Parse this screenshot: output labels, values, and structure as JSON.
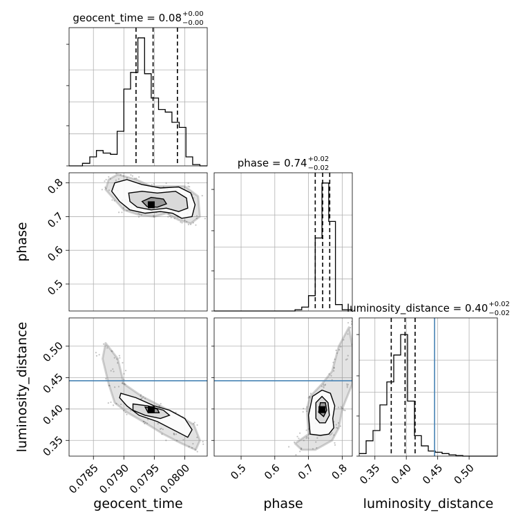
{
  "chart_data": {
    "type": "corner",
    "parameters": [
      "geocent_time",
      "phase",
      "luminosity_distance"
    ],
    "titles": [
      {
        "param": "geocent_time",
        "text": "geocent_time = 0.08",
        "sup": "+0.00",
        "sub": "−0.00"
      },
      {
        "param": "phase",
        "text": "phase = 0.74",
        "sup": "+0.02",
        "sub": "−0.02"
      },
      {
        "param": "luminosity_distance",
        "text": "luminosity_distance = 0.40",
        "sup": "+0.02",
        "sub": "−0.02"
      }
    ],
    "axis_labels": {
      "x": [
        "geocent_time",
        "phase",
        "luminosity_distance"
      ],
      "y": [
        "phase",
        "luminosity_distance"
      ]
    },
    "ranges": {
      "geocent_time": [
        0.0781,
        0.08037
      ],
      "phase": [
        0.42,
        0.83
      ],
      "luminosity_distance": [
        0.325,
        0.545
      ]
    },
    "ticks": {
      "geocent_time": [
        0.0785,
        0.079,
        0.0795,
        0.08
      ],
      "phase": [
        0.5,
        0.6,
        0.7,
        0.8
      ],
      "luminosity_distance": [
        0.35,
        0.4,
        0.45,
        0.5
      ]
    },
    "tick_labels": {
      "geocent_time": [
        "0.0785",
        "0.0790",
        "0.0795",
        "0.0800"
      ],
      "phase_x": [
        "0.5",
        "0.6",
        "0.7",
        "0.8"
      ],
      "phase_y": [
        "0.5",
        "0.6",
        "0.7",
        "0.8"
      ],
      "luminosity_distance_x": [
        "0.35",
        "0.40",
        "0.45",
        "0.50"
      ],
      "luminosity_distance_y": [
        "0.35",
        "0.40",
        "0.45",
        "0.50"
      ]
    },
    "histograms": {
      "geocent_time": {
        "edges": [
          0.0781,
          0.07821,
          0.07832,
          0.07844,
          0.07855,
          0.07866,
          0.07878,
          0.07889,
          0.079,
          0.07911,
          0.07923,
          0.07934,
          0.07945,
          0.07957,
          0.07968,
          0.07979,
          0.07991,
          0.08002,
          0.08013,
          0.08025,
          0.08037
        ],
        "counts": [
          0,
          0,
          0.02,
          0.07,
          0.12,
          0.1,
          0.09,
          0.27,
          0.6,
          0.73,
          1.0,
          0.72,
          0.53,
          0.44,
          0.42,
          0.34,
          0.3,
          0.07,
          0.01,
          0
        ]
      },
      "phase": {
        "edges": [
          0.42,
          0.44,
          0.46,
          0.48,
          0.5,
          0.52,
          0.54,
          0.56,
          0.58,
          0.6,
          0.62,
          0.64,
          0.66,
          0.68,
          0.7,
          0.72,
          0.74,
          0.76,
          0.78,
          0.8,
          0.83
        ],
        "counts": [
          0,
          0,
          0,
          0,
          0,
          0,
          0,
          0,
          0,
          0,
          0,
          0,
          0.01,
          0.03,
          0.12,
          0.57,
          1.0,
          0.7,
          0.05,
          0.01
        ]
      },
      "luminosity_distance": {
        "edges": [
          0.325,
          0.336,
          0.347,
          0.358,
          0.369,
          0.38,
          0.391,
          0.402,
          0.413,
          0.424,
          0.435,
          0.446,
          0.457,
          0.468,
          0.479,
          0.49,
          0.501,
          0.512,
          0.523,
          0.534,
          0.545
        ],
        "counts": [
          0.02,
          0.12,
          0.2,
          0.4,
          0.58,
          0.79,
          0.95,
          0.43,
          0.16,
          0.08,
          0.04,
          0.03,
          0.02,
          0.01,
          0.005,
          0,
          0,
          0,
          0,
          0
        ]
      }
    },
    "quantiles": {
      "geocent_time": [
        0.0792,
        0.07948,
        0.07988
      ],
      "phase": [
        0.72,
        0.742,
        0.763
      ],
      "luminosity_distance": [
        0.376,
        0.398,
        0.414
      ]
    },
    "truth": {
      "luminosity_distance": 0.445
    },
    "truth_color": "#4682b4",
    "contour_color": "#000000",
    "sample_color": "#808080",
    "grid": true,
    "panels": {
      "geocent_time_phase": {
        "median": [
          0.07945,
          0.735
        ],
        "cloud_path": [
          [
            0.07875,
            0.81
          ],
          [
            0.0789,
            0.825
          ],
          [
            0.0792,
            0.81
          ],
          [
            0.07945,
            0.79
          ],
          [
            0.0797,
            0.79
          ],
          [
            0.08,
            0.79
          ],
          [
            0.08022,
            0.76
          ],
          [
            0.08025,
            0.7
          ],
          [
            0.0801,
            0.68
          ],
          [
            0.0799,
            0.69
          ],
          [
            0.0797,
            0.71
          ],
          [
            0.0795,
            0.7
          ],
          [
            0.07925,
            0.705
          ],
          [
            0.079,
            0.72
          ],
          [
            0.07885,
            0.75
          ],
          [
            0.0787,
            0.78
          ]
        ],
        "contour_outer": [
          [
            0.07885,
            0.8
          ],
          [
            0.07905,
            0.81
          ],
          [
            0.0793,
            0.795
          ],
          [
            0.0796,
            0.785
          ],
          [
            0.0799,
            0.788
          ],
          [
            0.0801,
            0.77
          ],
          [
            0.08017,
            0.735
          ],
          [
            0.08012,
            0.7
          ],
          [
            0.07995,
            0.695
          ],
          [
            0.0798,
            0.71
          ],
          [
            0.0796,
            0.715
          ],
          [
            0.07935,
            0.71
          ],
          [
            0.0791,
            0.72
          ],
          [
            0.07893,
            0.745
          ],
          [
            0.0788,
            0.775
          ]
        ],
        "contour_mid": [
          [
            0.07908,
            0.77
          ],
          [
            0.0793,
            0.775
          ],
          [
            0.07955,
            0.77
          ],
          [
            0.07985,
            0.775
          ],
          [
            0.08003,
            0.755
          ],
          [
            0.08005,
            0.725
          ],
          [
            0.0799,
            0.715
          ],
          [
            0.0797,
            0.725
          ],
          [
            0.07945,
            0.72
          ],
          [
            0.07922,
            0.728
          ],
          [
            0.0791,
            0.745
          ]
        ],
        "contour_inner": [
          [
            0.0793,
            0.745
          ],
          [
            0.07945,
            0.757
          ],
          [
            0.07965,
            0.752
          ],
          [
            0.0797,
            0.738
          ],
          [
            0.07955,
            0.728
          ],
          [
            0.07938,
            0.73
          ]
        ]
      },
      "geocent_time_luminosity_distance": {
        "median": [
          0.07945,
          0.399
        ],
        "cloud_path": [
          [
            0.0787,
            0.505
          ],
          [
            0.0789,
            0.48
          ],
          [
            0.079,
            0.44
          ],
          [
            0.0793,
            0.42
          ],
          [
            0.0796,
            0.405
          ],
          [
            0.0799,
            0.39
          ],
          [
            0.08015,
            0.375
          ],
          [
            0.08025,
            0.35
          ],
          [
            0.08018,
            0.335
          ],
          [
            0.07995,
            0.345
          ],
          [
            0.07965,
            0.36
          ],
          [
            0.07935,
            0.378
          ],
          [
            0.07905,
            0.395
          ],
          [
            0.07885,
            0.41
          ],
          [
            0.07875,
            0.44
          ],
          [
            0.07865,
            0.48
          ]
        ],
        "contour_outer": [
          [
            0.07895,
            0.425
          ],
          [
            0.0792,
            0.418
          ],
          [
            0.0795,
            0.405
          ],
          [
            0.07975,
            0.398
          ],
          [
            0.08,
            0.385
          ],
          [
            0.08012,
            0.367
          ],
          [
            0.08005,
            0.355
          ],
          [
            0.07985,
            0.365
          ],
          [
            0.07955,
            0.38
          ],
          [
            0.07925,
            0.39
          ],
          [
            0.07905,
            0.405
          ],
          [
            0.07893,
            0.418
          ]
        ],
        "contour_mid": [
          [
            0.07915,
            0.408
          ],
          [
            0.0794,
            0.405
          ],
          [
            0.07965,
            0.398
          ],
          [
            0.07975,
            0.39
          ],
          [
            0.0796,
            0.385
          ],
          [
            0.07935,
            0.39
          ],
          [
            0.07915,
            0.398
          ]
        ],
        "contour_inner": [
          [
            0.07935,
            0.403
          ],
          [
            0.07955,
            0.4
          ],
          [
            0.07958,
            0.394
          ],
          [
            0.0794,
            0.394
          ]
        ]
      },
      "phase_luminosity_distance": {
        "median": [
          0.74,
          0.399
        ],
        "cloud_path": [
          [
            0.66,
            0.345
          ],
          [
            0.7,
            0.36
          ],
          [
            0.695,
            0.4
          ],
          [
            0.705,
            0.42
          ],
          [
            0.74,
            0.44
          ],
          [
            0.77,
            0.46
          ],
          [
            0.79,
            0.5
          ],
          [
            0.82,
            0.53
          ],
          [
            0.83,
            0.5
          ],
          [
            0.83,
            0.44
          ],
          [
            0.8,
            0.4
          ],
          [
            0.79,
            0.37
          ],
          [
            0.77,
            0.35
          ],
          [
            0.72,
            0.335
          ],
          [
            0.68,
            0.335
          ]
        ],
        "contour_outer": [
          [
            0.705,
            0.36
          ],
          [
            0.7,
            0.39
          ],
          [
            0.712,
            0.42
          ],
          [
            0.74,
            0.43
          ],
          [
            0.765,
            0.425
          ],
          [
            0.778,
            0.405
          ],
          [
            0.772,
            0.385
          ],
          [
            0.775,
            0.37
          ],
          [
            0.76,
            0.36
          ],
          [
            0.735,
            0.358
          ]
        ],
        "contour_mid": [
          [
            0.722,
            0.385
          ],
          [
            0.722,
            0.41
          ],
          [
            0.74,
            0.42
          ],
          [
            0.758,
            0.41
          ],
          [
            0.762,
            0.39
          ],
          [
            0.75,
            0.378
          ],
          [
            0.733,
            0.378
          ]
        ],
        "contour_inner": [
          [
            0.73,
            0.395
          ],
          [
            0.735,
            0.41
          ],
          [
            0.75,
            0.41
          ],
          [
            0.754,
            0.398
          ],
          [
            0.745,
            0.388
          ]
        ]
      }
    }
  }
}
